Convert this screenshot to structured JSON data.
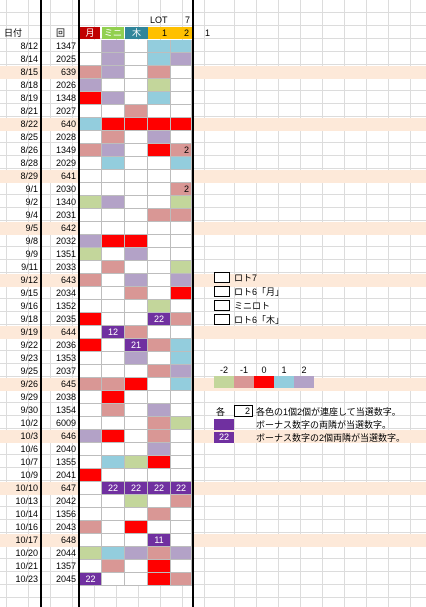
{
  "header": {
    "date_label": "日付",
    "draw_label": "回",
    "tsuki_label": "月",
    "mini_label": "ミニ",
    "moku_label": "木",
    "lot_label": "LOT",
    "seven": "7",
    "one_a": "1",
    "two": "2",
    "one_b": "1"
  },
  "colors": {
    "red": "#ff0000",
    "pink": "#d99795",
    "purple": "#b3a2c7",
    "blue": "#93cddd",
    "green": "#c3d69b",
    "peach": "#fde9d9",
    "dark_purple": "#7030a0",
    "white": "#ffffff"
  },
  "rows": [
    {
      "date": "8/12",
      "draw": "1347",
      "hl": false,
      "cells": [
        "",
        "purple",
        "",
        "blue",
        "blue"
      ],
      "mark": []
    },
    {
      "date": "8/14",
      "draw": "2025",
      "hl": false,
      "cells": [
        "",
        "purple",
        "",
        "blue",
        "purple"
      ],
      "mark": []
    },
    {
      "date": "8/15",
      "draw": "639",
      "hl": true,
      "cells": [
        "pink",
        "purple",
        "",
        "pink",
        ""
      ],
      "mark": []
    },
    {
      "date": "8/18",
      "draw": "2026",
      "hl": false,
      "cells": [
        "purple",
        "",
        "",
        "green",
        ""
      ],
      "mark": []
    },
    {
      "date": "8/19",
      "draw": "1348",
      "hl": false,
      "cells": [
        "red",
        "purple",
        "",
        "blue",
        ""
      ],
      "mark": []
    },
    {
      "date": "8/21",
      "draw": "2027",
      "hl": false,
      "cells": [
        "",
        "",
        "pink",
        "",
        ""
      ],
      "mark": []
    },
    {
      "date": "8/22",
      "draw": "640",
      "hl": true,
      "cells": [
        "blue",
        "red",
        "red",
        "red",
        "red"
      ],
      "mark": []
    },
    {
      "date": "8/25",
      "draw": "2028",
      "hl": false,
      "cells": [
        "",
        "pink",
        "",
        "purple",
        ""
      ],
      "mark": []
    },
    {
      "date": "8/26",
      "draw": "1349",
      "hl": false,
      "cells": [
        "pink",
        "purple",
        "",
        "red",
        "pink"
      ],
      "mark": [
        "",
        "",
        "",
        "",
        "2"
      ]
    },
    {
      "date": "8/28",
      "draw": "2029",
      "hl": false,
      "cells": [
        "",
        "blue",
        "",
        "",
        "blue"
      ],
      "mark": []
    },
    {
      "date": "8/29",
      "draw": "641",
      "hl": true,
      "cells": [
        "",
        "",
        "",
        "",
        ""
      ],
      "mark": []
    },
    {
      "date": "9/1",
      "draw": "2030",
      "hl": false,
      "cells": [
        "",
        "",
        "",
        "",
        "pink"
      ],
      "mark": [
        "",
        "",
        "",
        "",
        "2"
      ]
    },
    {
      "date": "9/2",
      "draw": "1340",
      "hl": false,
      "cells": [
        "green",
        "purple",
        "",
        "",
        "green"
      ],
      "mark": []
    },
    {
      "date": "9/4",
      "draw": "2031",
      "hl": false,
      "cells": [
        "",
        "",
        "",
        "pink",
        "pink"
      ],
      "mark": []
    },
    {
      "date": "9/5",
      "draw": "642",
      "hl": true,
      "cells": [
        "",
        "",
        "",
        "",
        ""
      ],
      "mark": []
    },
    {
      "date": "9/8",
      "draw": "2032",
      "hl": false,
      "cells": [
        "purple",
        "red",
        "red",
        "",
        ""
      ],
      "mark": []
    },
    {
      "date": "9/9",
      "draw": "1351",
      "hl": false,
      "cells": [
        "green",
        "",
        "purple",
        "",
        ""
      ],
      "mark": []
    },
    {
      "date": "9/11",
      "draw": "2033",
      "hl": false,
      "cells": [
        "",
        "pink",
        "",
        "",
        "green"
      ],
      "mark": []
    },
    {
      "date": "9/12",
      "draw": "643",
      "hl": true,
      "cells": [
        "pink",
        "",
        "purple",
        "",
        "purple"
      ],
      "mark": []
    },
    {
      "date": "9/15",
      "draw": "2034",
      "hl": false,
      "cells": [
        "",
        "",
        "pink",
        "",
        "red"
      ],
      "mark": []
    },
    {
      "date": "9/16",
      "draw": "1352",
      "hl": false,
      "cells": [
        "",
        "",
        "",
        "green",
        ""
      ],
      "mark": []
    },
    {
      "date": "9/18",
      "draw": "2035",
      "hl": false,
      "cells": [
        "red",
        "",
        "",
        "dark_purple",
        "pink"
      ],
      "mark": [
        "",
        "",
        "",
        "22",
        ""
      ]
    },
    {
      "date": "9/19",
      "draw": "644",
      "hl": true,
      "cells": [
        "",
        "dark_purple",
        "pink",
        "",
        ""
      ],
      "mark": [
        "",
        "12",
        "",
        "",
        ""
      ]
    },
    {
      "date": "9/22",
      "draw": "2036",
      "hl": false,
      "cells": [
        "red",
        "",
        "dark_purple",
        "pink",
        "blue"
      ],
      "mark": [
        "",
        "",
        "21",
        "",
        ""
      ]
    },
    {
      "date": "9/23",
      "draw": "1353",
      "hl": false,
      "cells": [
        "",
        "",
        "purple",
        "",
        "blue"
      ],
      "mark": []
    },
    {
      "date": "9/25",
      "draw": "2037",
      "hl": false,
      "cells": [
        "",
        "",
        "",
        "pink",
        "purple"
      ],
      "mark": []
    },
    {
      "date": "9/26",
      "draw": "645",
      "hl": true,
      "cells": [
        "pink",
        "pink",
        "red",
        "",
        "blue"
      ],
      "mark": []
    },
    {
      "date": "9/29",
      "draw": "2038",
      "hl": false,
      "cells": [
        "",
        "red",
        "",
        "",
        ""
      ],
      "mark": []
    },
    {
      "date": "9/30",
      "draw": "1354",
      "hl": false,
      "cells": [
        "",
        "pink",
        "",
        "purple",
        ""
      ],
      "mark": []
    },
    {
      "date": "10/2",
      "draw": "6009",
      "hl": false,
      "cells": [
        "",
        "",
        "",
        "pink",
        "green"
      ],
      "mark": []
    },
    {
      "date": "10/3",
      "draw": "646",
      "hl": true,
      "cells": [
        "purple",
        "red",
        "",
        "pink",
        ""
      ],
      "mark": []
    },
    {
      "date": "10/6",
      "draw": "2040",
      "hl": false,
      "cells": [
        "",
        "",
        "",
        "purple",
        ""
      ],
      "mark": []
    },
    {
      "date": "10/7",
      "draw": "1355",
      "hl": false,
      "cells": [
        "",
        "blue",
        "green",
        "red",
        ""
      ],
      "mark": []
    },
    {
      "date": "10/9",
      "draw": "2041",
      "hl": false,
      "cells": [
        "red",
        "",
        "",
        "",
        ""
      ],
      "mark": []
    },
    {
      "date": "10/10",
      "draw": "647",
      "hl": true,
      "cells": [
        "",
        "dark_purple",
        "dark_purple",
        "dark_purple",
        "dark_purple"
      ],
      "mark": [
        "",
        "22",
        "22",
        "22",
        "22"
      ]
    },
    {
      "date": "10/13",
      "draw": "2042",
      "hl": false,
      "cells": [
        "",
        "",
        "green",
        "",
        "pink"
      ],
      "mark": []
    },
    {
      "date": "10/14",
      "draw": "1356",
      "hl": false,
      "cells": [
        "",
        "",
        "",
        "pink",
        ""
      ],
      "mark": []
    },
    {
      "date": "10/16",
      "draw": "2043",
      "hl": false,
      "cells": [
        "pink",
        "",
        "red",
        "",
        ""
      ],
      "mark": []
    },
    {
      "date": "10/17",
      "draw": "648",
      "hl": true,
      "cells": [
        "",
        "",
        "",
        "dark_purple",
        ""
      ],
      "mark": [
        "",
        "",
        "",
        "11",
        ""
      ]
    },
    {
      "date": "10/20",
      "draw": "2044",
      "hl": false,
      "cells": [
        "green",
        "blue",
        "purple",
        "pink",
        "purple"
      ],
      "mark": []
    },
    {
      "date": "10/21",
      "draw": "1357",
      "hl": false,
      "cells": [
        "",
        "pink",
        "",
        "red",
        ""
      ],
      "mark": []
    },
    {
      "date": "10/23",
      "draw": "2045",
      "hl": false,
      "cells": [
        "dark_purple",
        "",
        "",
        "red",
        "pink"
      ],
      "mark": [
        "22",
        "",
        "",
        "",
        ""
      ]
    }
  ],
  "legend_items": [
    {
      "label": "ロト7"
    },
    {
      "label": "ロト6「月」"
    },
    {
      "label": "ミニロト"
    },
    {
      "label": "ロト6「木」"
    }
  ],
  "scale": {
    "labels": [
      "-2",
      "-1",
      "0",
      "1",
      "2"
    ],
    "colors": [
      "green",
      "pink",
      "red",
      "blue",
      "purple"
    ]
  },
  "notes": {
    "kaku": "各",
    "kaku_value": "2",
    "line1": "各色の1個2個が連座して当選数字。",
    "line2": "ボーナス数字の両隣が当選数字。",
    "line3": "ボーナス数字の2個両隣が当選数字。",
    "swatch2": "dark_purple",
    "swatch3": "dark_purple",
    "swatch3_text": "22"
  }
}
